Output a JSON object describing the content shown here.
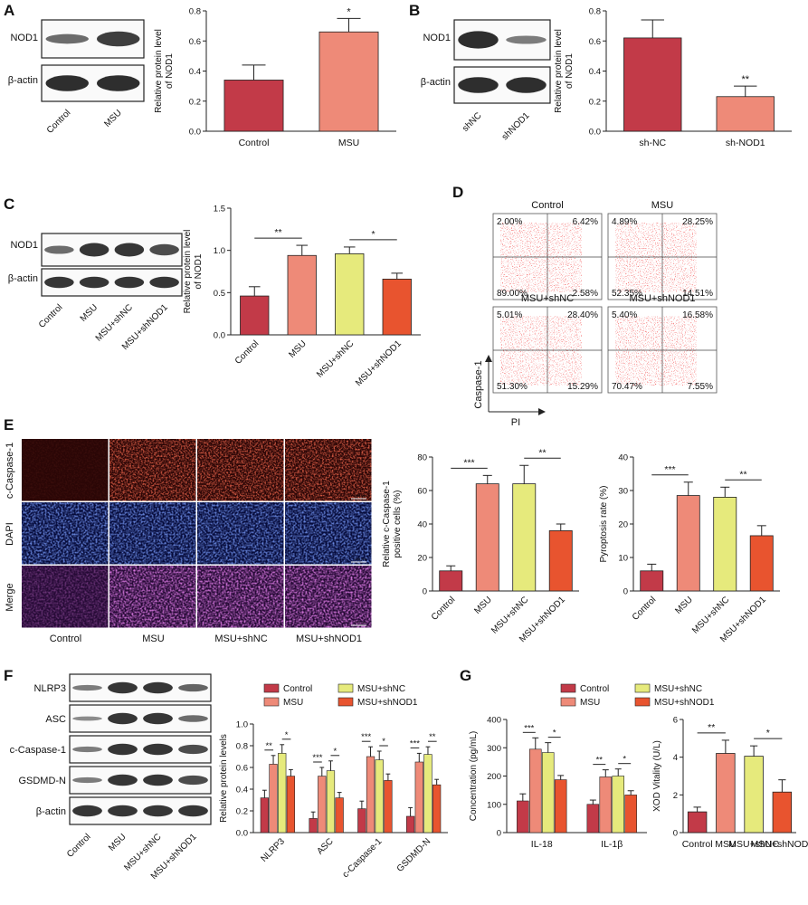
{
  "colors": {
    "control": "#c23a48",
    "msu": "#ee8a78",
    "shnc": "#e6ea7c",
    "shnod1": "#e8542f"
  },
  "letters": [
    "A",
    "B",
    "C",
    "D",
    "E",
    "F",
    "G"
  ],
  "panelA": {
    "blot_rows": [
      "NOD1",
      "β-actin"
    ],
    "lanes": [
      "Control",
      "MSU"
    ],
    "chart_data": {
      "type": "bar",
      "categories": [
        "Control",
        "MSU"
      ],
      "values": [
        0.34,
        0.66
      ],
      "errors": [
        0.1,
        0.09
      ],
      "sig": [
        "",
        "*"
      ],
      "ylabel": "Relative protein level of NOD1",
      "ylim": [
        0,
        0.8
      ],
      "yticks": [
        "0.0",
        "0.2",
        "0.4",
        "0.6",
        "0.8"
      ]
    }
  },
  "panelB": {
    "blot_rows": [
      "NOD1",
      "β-actin"
    ],
    "lanes": [
      "shNC",
      "shNOD1"
    ],
    "chart_data": {
      "type": "bar",
      "categories": [
        "sh-NC",
        "sh-NOD1"
      ],
      "values": [
        0.62,
        0.23
      ],
      "errors": [
        0.12,
        0.07
      ],
      "sig": [
        "",
        "**"
      ],
      "ylabel": "Relative protein level of NOD1",
      "ylim": [
        0,
        0.8
      ],
      "yticks": [
        "0.0",
        "0.2",
        "0.4",
        "0.6",
        "0.8"
      ]
    }
  },
  "panelC": {
    "blot_rows": [
      "NOD1",
      "β-actin"
    ],
    "lanes": [
      "Control",
      "MSU",
      "MSU+shNC",
      "MSU+shNOD1"
    ],
    "chart_data": {
      "type": "bar",
      "categories": [
        "Control",
        "MSU",
        "MSU+shNC",
        "MSU+shNOD1"
      ],
      "values": [
        0.46,
        0.94,
        0.96,
        0.66
      ],
      "errors": [
        0.11,
        0.12,
        0.08,
        0.07
      ],
      "brackets": [
        {
          "from": 0,
          "to": 1,
          "label": "**"
        },
        {
          "from": 2,
          "to": 3,
          "label": "*"
        }
      ],
      "ylabel": "Relative protein level of NOD1",
      "ylim": [
        0,
        1.5
      ],
      "yticks": [
        "0.0",
        "0.5",
        "1.0",
        "1.5"
      ]
    }
  },
  "panelD": {
    "plots": [
      {
        "title": "Control",
        "ul": "2.00%",
        "ur": "6.42%",
        "ll": "89.00%",
        "lr": "2.58%"
      },
      {
        "title": "MSU",
        "ul": "4.89%",
        "ur": "28.25%",
        "ll": "52.35%",
        "lr": "14.51%"
      },
      {
        "title": "MSU+shNC",
        "ul": "5.01%",
        "ur": "28.40%",
        "ll": "51.30%",
        "lr": "15.29%"
      },
      {
        "title": "MSU+shNOD1",
        "ul": "5.40%",
        "ur": "16.58%",
        "ll": "70.47%",
        "lr": "7.55%"
      }
    ],
    "yaxis": "Caspase-1",
    "xaxis": "PI"
  },
  "panelE": {
    "rows": [
      "c-Caspase-1",
      "DAPI",
      "Merge"
    ],
    "cols": [
      "Control",
      "MSU",
      "MSU+shNC",
      "MSU+shNOD1"
    ],
    "scale": "100 μm",
    "chart1": {
      "type": "bar",
      "categories": [
        "Control",
        "MSU",
        "MSU+shNC",
        "MSU+shNOD1"
      ],
      "values": [
        12,
        64,
        64,
        36
      ],
      "errors": [
        3,
        5,
        11,
        4
      ],
      "brackets": [
        {
          "from": 0,
          "to": 1,
          "label": "***"
        },
        {
          "from": 2,
          "to": 3,
          "label": "**"
        }
      ],
      "ylabel": "Relative c-Caspase-1 positive cells (%)",
      "ylim": [
        0,
        80
      ],
      "yticks": [
        "0",
        "20",
        "40",
        "60",
        "80"
      ]
    },
    "chart2": {
      "type": "bar",
      "categories": [
        "Control",
        "MSU",
        "MSU+shNC",
        "MSU+shNOD1"
      ],
      "values": [
        6,
        28.5,
        28,
        16.5
      ],
      "errors": [
        2,
        4,
        3,
        3
      ],
      "brackets": [
        {
          "from": 0,
          "to": 1,
          "label": "***"
        },
        {
          "from": 2,
          "to": 3,
          "label": "**"
        }
      ],
      "ylabel": "Pyroptosis rate (%)",
      "ylim": [
        0,
        40
      ],
      "yticks": [
        "0",
        "10",
        "20",
        "30",
        "40"
      ]
    }
  },
  "panelF": {
    "blot_rows": [
      "NLRP3",
      "ASC",
      "c-Caspase-1",
      "GSDMD-N",
      "β-actin"
    ],
    "lanes": [
      "Control",
      "MSU",
      "MSU+shNC",
      "MSU+shNOD1"
    ],
    "legend": [
      "Control",
      "MSU+shNC",
      "MSU",
      "MSU+shNOD1"
    ],
    "chart_data": {
      "type": "bar",
      "categories": [
        "NLRP3",
        "ASC",
        "c-Caspase-1",
        "GSDMD-N"
      ],
      "series": [
        {
          "name": "Control",
          "values": [
            0.32,
            0.13,
            0.22,
            0.15
          ],
          "errors": [
            0.07,
            0.06,
            0.07,
            0.08
          ]
        },
        {
          "name": "MSU",
          "values": [
            0.63,
            0.52,
            0.7,
            0.65
          ],
          "errors": [
            0.08,
            0.08,
            0.09,
            0.08
          ]
        },
        {
          "name": "MSU+shNC",
          "values": [
            0.73,
            0.57,
            0.67,
            0.72
          ],
          "errors": [
            0.08,
            0.09,
            0.08,
            0.07
          ]
        },
        {
          "name": "MSU+shNOD1",
          "values": [
            0.52,
            0.32,
            0.48,
            0.44
          ],
          "errors": [
            0.06,
            0.05,
            0.06,
            0.05
          ]
        }
      ],
      "sig": [
        [
          "**",
          "*"
        ],
        [
          "***",
          "*"
        ],
        [
          "***",
          "*"
        ],
        [
          "***",
          "**"
        ]
      ],
      "ylabel": "Relative protein levels",
      "ylim": [
        0,
        1.0
      ],
      "yticks": [
        "0.0",
        "0.2",
        "0.4",
        "0.6",
        "0.8",
        "1.0"
      ]
    }
  },
  "panelG": {
    "legend": [
      "Control",
      "MSU+shNC",
      "MSU",
      "MSU+shNOD1"
    ],
    "chart1": {
      "type": "bar",
      "categories": [
        "IL-18",
        "IL-1β"
      ],
      "series": [
        {
          "name": "Control",
          "values": [
            112,
            100
          ],
          "errors": [
            25,
            15
          ]
        },
        {
          "name": "MSU",
          "values": [
            295,
            197
          ],
          "errors": [
            40,
            25
          ]
        },
        {
          "name": "MSU+shNC",
          "values": [
            283,
            200
          ],
          "errors": [
            35,
            25
          ]
        },
        {
          "name": "MSU+shNOD1",
          "values": [
            187,
            133
          ],
          "errors": [
            15,
            15
          ]
        }
      ],
      "sig": [
        [
          "***",
          "*"
        ],
        [
          "**",
          "*"
        ]
      ],
      "ylabel": "Concentration (pg/mL)",
      "ylim": [
        0,
        400
      ],
      "yticks": [
        "0",
        "100",
        "200",
        "300",
        "400"
      ]
    },
    "chart2": {
      "type": "bar",
      "categories": [
        "Control",
        "MSU",
        "MSU+shNC",
        "MSU+shNOD1"
      ],
      "values": [
        1.1,
        4.2,
        4.05,
        2.15
      ],
      "errors": [
        0.25,
        0.7,
        0.55,
        0.65
      ],
      "brackets": [
        {
          "from": 0,
          "to": 1,
          "label": "**"
        },
        {
          "from": 2,
          "to": 3,
          "label": "*"
        }
      ],
      "ylabel": "XOD Vitality (U/L)",
      "ylim": [
        0,
        6
      ],
      "yticks": [
        "0",
        "2",
        "4",
        "6"
      ]
    }
  }
}
